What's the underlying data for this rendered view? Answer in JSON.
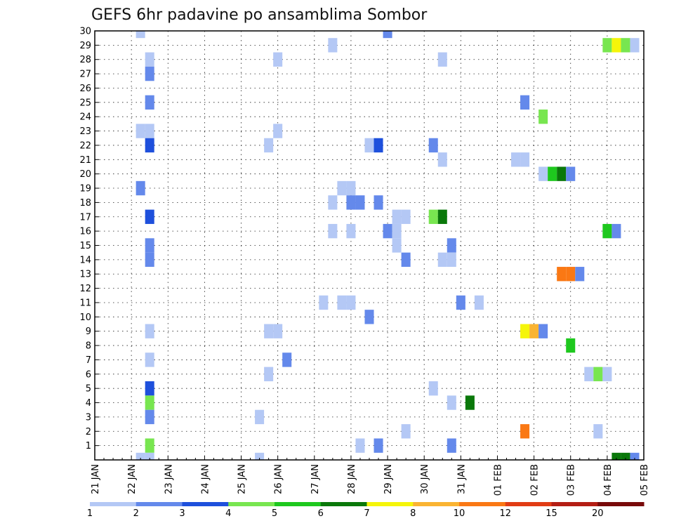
{
  "chart_data": {
    "type": "heatmap",
    "title": "GEFS 6hr padavine po ansamblima Sombor",
    "xlabel": "",
    "ylabel": "",
    "x_tick_labels": [
      "21 JAN",
      "22 JAN",
      "23 JAN",
      "24 JAN",
      "25 JAN",
      "26 JAN",
      "27 JAN",
      "28 JAN",
      "29 JAN",
      "30 JAN",
      "31 JAN",
      "01 FEB",
      "02 FEB",
      "03 FEB",
      "04 FEB",
      "05 FEB"
    ],
    "y_tick_labels": [
      "1",
      "2",
      "3",
      "4",
      "5",
      "6",
      "7",
      "8",
      "9",
      "10",
      "11",
      "12",
      "13",
      "14",
      "15",
      "16",
      "17",
      "18",
      "19",
      "20",
      "21",
      "22",
      "23",
      "24",
      "25",
      "26",
      "27",
      "28",
      "29",
      "30"
    ],
    "x_range_steps": [
      0,
      60
    ],
    "y_range_members": [
      0,
      30
    ],
    "step_hours": 6,
    "grid": true,
    "colorbar": {
      "labels": [
        "1",
        "2",
        "3",
        "4",
        "5",
        "6",
        "7",
        "8",
        "10",
        "12",
        "15",
        "20"
      ],
      "colors": [
        "#b4c8f5",
        "#6489eb",
        "#1e50dc",
        "#78e650",
        "#1ec81e",
        "#0a780a",
        "#f5f50a",
        "#fab432",
        "#fa7814",
        "#e13c14",
        "#b41e14",
        "#780a0a"
      ]
    },
    "cells": [
      {
        "member": 30,
        "step": 5,
        "level": 0
      },
      {
        "member": 30,
        "step": 32,
        "level": 1
      },
      {
        "member": 29,
        "step": 26,
        "level": 0
      },
      {
        "member": 29,
        "step": 56,
        "level": 3
      },
      {
        "member": 29,
        "step": 57,
        "level": 6
      },
      {
        "member": 29,
        "step": 58,
        "level": 3
      },
      {
        "member": 29,
        "step": 59,
        "level": 0
      },
      {
        "member": 28,
        "step": 6,
        "level": 0
      },
      {
        "member": 28,
        "step": 20,
        "level": 0
      },
      {
        "member": 28,
        "step": 38,
        "level": 0
      },
      {
        "member": 27,
        "step": 6,
        "level": 1
      },
      {
        "member": 25,
        "step": 6,
        "level": 1
      },
      {
        "member": 25,
        "step": 47,
        "level": 1
      },
      {
        "member": 24,
        "step": 49,
        "level": 3
      },
      {
        "member": 23,
        "step": 5,
        "level": 0
      },
      {
        "member": 23,
        "step": 6,
        "level": 0
      },
      {
        "member": 23,
        "step": 20,
        "level": 0
      },
      {
        "member": 22,
        "step": 6,
        "level": 2
      },
      {
        "member": 22,
        "step": 19,
        "level": 0
      },
      {
        "member": 22,
        "step": 30,
        "level": 0
      },
      {
        "member": 22,
        "step": 31,
        "level": 2
      },
      {
        "member": 22,
        "step": 37,
        "level": 1
      },
      {
        "member": 21,
        "step": 38,
        "level": 0
      },
      {
        "member": 21,
        "step": 46,
        "level": 0
      },
      {
        "member": 21,
        "step": 47,
        "level": 0
      },
      {
        "member": 20,
        "step": 49,
        "level": 0
      },
      {
        "member": 20,
        "step": 50,
        "level": 4
      },
      {
        "member": 20,
        "step": 51,
        "level": 5
      },
      {
        "member": 20,
        "step": 52,
        "level": 1
      },
      {
        "member": 19,
        "step": 5,
        "level": 1
      },
      {
        "member": 19,
        "step": 27,
        "level": 0
      },
      {
        "member": 19,
        "step": 28,
        "level": 0
      },
      {
        "member": 18,
        "step": 26,
        "level": 0
      },
      {
        "member": 18,
        "step": 28,
        "level": 1
      },
      {
        "member": 18,
        "step": 29,
        "level": 1
      },
      {
        "member": 18,
        "step": 31,
        "level": 1
      },
      {
        "member": 17,
        "step": 6,
        "level": 2
      },
      {
        "member": 17,
        "step": 33,
        "level": 0
      },
      {
        "member": 17,
        "step": 34,
        "level": 0
      },
      {
        "member": 17,
        "step": 37,
        "level": 3
      },
      {
        "member": 17,
        "step": 38,
        "level": 5
      },
      {
        "member": 16,
        "step": 26,
        "level": 0
      },
      {
        "member": 16,
        "step": 28,
        "level": 0
      },
      {
        "member": 16,
        "step": 32,
        "level": 1
      },
      {
        "member": 16,
        "step": 33,
        "level": 0
      },
      {
        "member": 16,
        "step": 56,
        "level": 4
      },
      {
        "member": 16,
        "step": 57,
        "level": 1
      },
      {
        "member": 15,
        "step": 6,
        "level": 1
      },
      {
        "member": 15,
        "step": 33,
        "level": 0
      },
      {
        "member": 15,
        "step": 39,
        "level": 1
      },
      {
        "member": 14,
        "step": 6,
        "level": 1
      },
      {
        "member": 14,
        "step": 34,
        "level": 1
      },
      {
        "member": 14,
        "step": 38,
        "level": 0
      },
      {
        "member": 14,
        "step": 39,
        "level": 0
      },
      {
        "member": 13,
        "step": 51,
        "level": 8
      },
      {
        "member": 13,
        "step": 52,
        "level": 8
      },
      {
        "member": 13,
        "step": 53,
        "level": 1
      },
      {
        "member": 11,
        "step": 25,
        "level": 0
      },
      {
        "member": 11,
        "step": 27,
        "level": 0
      },
      {
        "member": 11,
        "step": 28,
        "level": 0
      },
      {
        "member": 11,
        "step": 40,
        "level": 1
      },
      {
        "member": 11,
        "step": 42,
        "level": 0
      },
      {
        "member": 10,
        "step": 30,
        "level": 1
      },
      {
        "member": 9,
        "step": 6,
        "level": 0
      },
      {
        "member": 9,
        "step": 19,
        "level": 0
      },
      {
        "member": 9,
        "step": 20,
        "level": 0
      },
      {
        "member": 9,
        "step": 47,
        "level": 6
      },
      {
        "member": 9,
        "step": 48,
        "level": 7
      },
      {
        "member": 9,
        "step": 49,
        "level": 1
      },
      {
        "member": 8,
        "step": 52,
        "level": 4
      },
      {
        "member": 7,
        "step": 6,
        "level": 0
      },
      {
        "member": 7,
        "step": 21,
        "level": 1
      },
      {
        "member": 6,
        "step": 19,
        "level": 0
      },
      {
        "member": 6,
        "step": 54,
        "level": 0
      },
      {
        "member": 6,
        "step": 55,
        "level": 3
      },
      {
        "member": 6,
        "step": 56,
        "level": 0
      },
      {
        "member": 5,
        "step": 6,
        "level": 2
      },
      {
        "member": 5,
        "step": 37,
        "level": 0
      },
      {
        "member": 4,
        "step": 6,
        "level": 3
      },
      {
        "member": 4,
        "step": 39,
        "level": 0
      },
      {
        "member": 4,
        "step": 41,
        "level": 5
      },
      {
        "member": 3,
        "step": 6,
        "level": 1
      },
      {
        "member": 3,
        "step": 18,
        "level": 0
      },
      {
        "member": 2,
        "step": 34,
        "level": 0
      },
      {
        "member": 2,
        "step": 47,
        "level": 8
      },
      {
        "member": 2,
        "step": 55,
        "level": 0
      },
      {
        "member": 1,
        "step": 6,
        "level": 3
      },
      {
        "member": 1,
        "step": 29,
        "level": 0
      },
      {
        "member": 1,
        "step": 31,
        "level": 1
      },
      {
        "member": 1,
        "step": 39,
        "level": 1
      },
      {
        "member": 0,
        "step": 5,
        "level": 0
      },
      {
        "member": 0,
        "step": 6,
        "level": 0
      },
      {
        "member": 0,
        "step": 18,
        "level": 0
      },
      {
        "member": 0,
        "step": 57,
        "level": 5
      },
      {
        "member": 0,
        "step": 58,
        "level": 5
      },
      {
        "member": 0,
        "step": 59,
        "level": 1
      }
    ]
  }
}
